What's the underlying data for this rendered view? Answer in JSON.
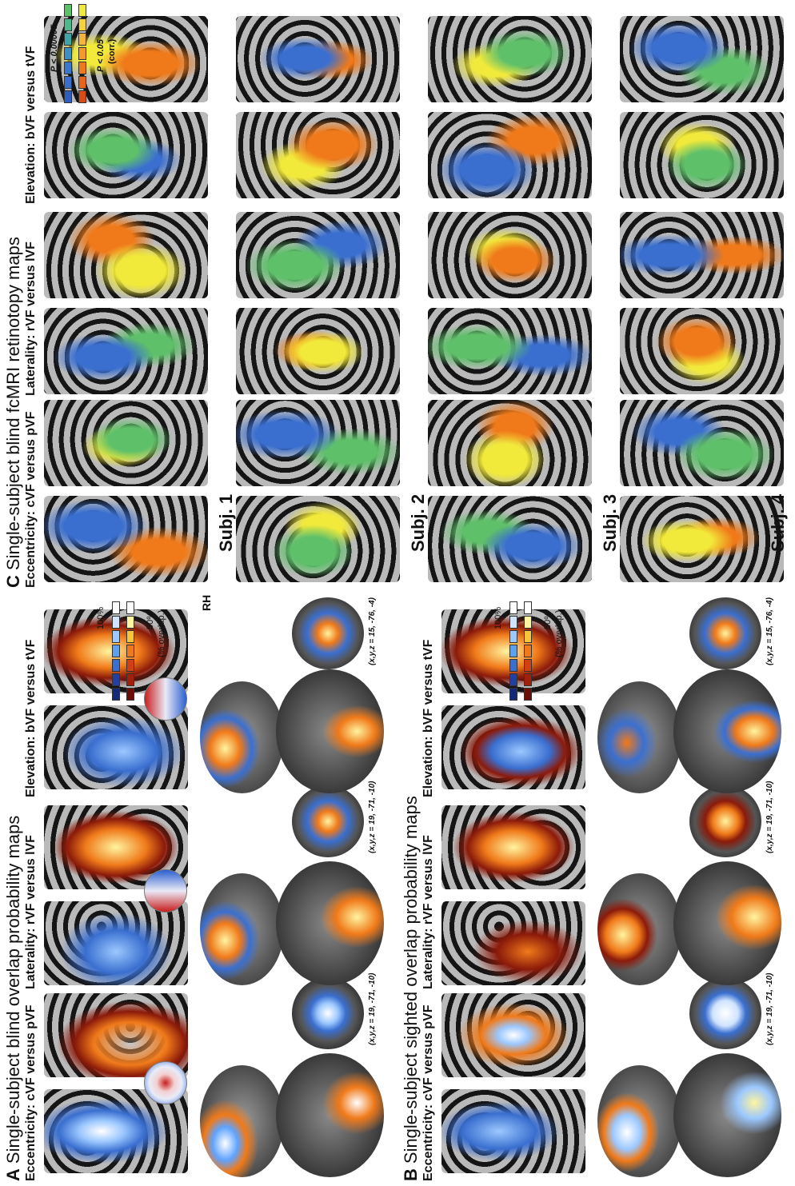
{
  "panel_a": {
    "letter": "A",
    "title": "Single-subject blind overlap probability maps",
    "conditions": [
      "Eccentricity: cVF versus pVF",
      "Laterality: rVF versus lVF",
      "Elevation: bVF versus tVF"
    ],
    "coords": [
      "(x,y,z = 19, -71, -10)",
      "(x,y,z = 19, -71, -10)",
      "(x,y,z = 15, -76, -4)"
    ],
    "hemisphere": "RH",
    "colorbar_top": "100%",
    "colorbar_mid": "50%",
    "colorbar_unit": "(% overlap.)"
  },
  "panel_b": {
    "letter": "B",
    "title": "Single-subject sighted overlap probability maps",
    "conditions": [
      "Eccentricity: cVF versus pVF",
      "Laterality: rVF versus lVF",
      "Elevation: bVF versus tVF"
    ],
    "coords": [
      "(x,y,z = 19, -71, -10)",
      "(x,y,z = 19, -71, -10)",
      "(x,y,z = 15, -76, -4)"
    ],
    "colorbar_top": "100%",
    "colorbar_mid": "50%",
    "colorbar_unit": "(% overlap.)"
  },
  "panel_c": {
    "letter": "C",
    "title": "Single-subject blind fcMRI retinotopy maps",
    "conditions": [
      "Eccentricity: cVF versus pVF",
      "Laterality: rVF versus lVF",
      "Elevation: bVF versus tVF"
    ],
    "subjects": [
      "Subj. 1",
      "Subj. 2",
      "Subj. 3",
      "Subj. 4"
    ],
    "p_low": "P < 0.00005",
    "p_high": "P < 0.05",
    "p_corr": "(corr.)"
  },
  "colors": {
    "cortex_gray": "#b9b9b9",
    "sulcus_black": "#151515",
    "warm": "#f07a1a",
    "cool": "#3a6fd0",
    "green": "#5fc06a",
    "yellow": "#f2ea3a"
  }
}
